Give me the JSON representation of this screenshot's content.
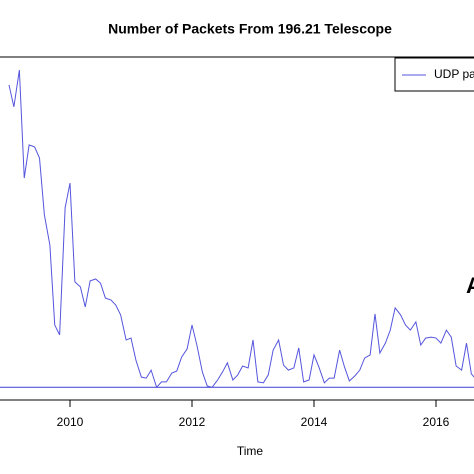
{
  "chart_data": {
    "type": "line",
    "title": "Number of Packets From 196.21 Telescope",
    "x_label": "Time",
    "annotation": "A",
    "hline": 0,
    "hline_color": "#5555dd",
    "x": [
      2009,
      2009.08,
      2009.17,
      2009.25,
      2009.33,
      2009.42,
      2009.5,
      2009.58,
      2009.67,
      2009.75,
      2009.83,
      2009.92,
      2010,
      2010.08,
      2010.17,
      2010.25,
      2010.33,
      2010.42,
      2010.5,
      2010.58,
      2010.67,
      2010.75,
      2010.83,
      2010.92,
      2011,
      2011.08,
      2011.17,
      2011.25,
      2011.33,
      2011.42,
      2011.5,
      2011.58,
      2011.67,
      2011.75,
      2011.83,
      2011.92,
      2012,
      2012.08,
      2012.17,
      2012.25,
      2012.33,
      2012.42,
      2012.5,
      2012.58,
      2012.67,
      2012.75,
      2012.83,
      2012.92,
      2013,
      2013.08,
      2013.17,
      2013.25,
      2013.33,
      2013.42,
      2013.5,
      2013.58,
      2013.67,
      2013.75,
      2013.83,
      2013.92,
      2014,
      2014.08,
      2014.17,
      2014.25,
      2014.33,
      2014.42,
      2014.5,
      2014.58,
      2014.67,
      2014.75,
      2014.83,
      2014.92,
      2015,
      2015.08,
      2015.17,
      2015.25,
      2015.33,
      2015.42,
      2015.5,
      2015.58,
      2015.67,
      2015.75,
      2015.83,
      2015.92,
      2016,
      2016.08,
      2016.17,
      2016.25,
      2016.33,
      2016.42,
      2016.5,
      2016.58,
      2016.67
    ],
    "series": [
      {
        "name": "UDP pa",
        "color": "#5555dd",
        "values": [
          95.2,
          88.3,
          99.9,
          65.9,
          76.3,
          75.7,
          72.2,
          54.3,
          44.8,
          19.6,
          16.5,
          56.5,
          64.3,
          33.2,
          31.6,
          25.3,
          33.5,
          34.1,
          32.8,
          28.1,
          27.5,
          25.9,
          22.8,
          14.9,
          15.5,
          8.6,
          3.2,
          2.9,
          5.4,
          0,
          1.7,
          1.7,
          4.5,
          5.1,
          9.5,
          12.1,
          19.6,
          13.3,
          4.8,
          0.4,
          0,
          2.3,
          4.8,
          7.7,
          2.3,
          3.9,
          6.7,
          6.1,
          14.9,
          1.7,
          1.4,
          3.9,
          11.7,
          14.9,
          7.0,
          5.4,
          6.1,
          12.4,
          1.7,
          2.3,
          10.2,
          6.4,
          1.4,
          2.9,
          2.9,
          11.7,
          6.4,
          2.0,
          3.6,
          5.4,
          9.2,
          10.2,
          23.1,
          10.8,
          13.9,
          18.0,
          25.0,
          22.8,
          19.6,
          18.0,
          20.6,
          13.3,
          15.5,
          15.8,
          15.5,
          13.9,
          18.0,
          15.8,
          6.7,
          5.4,
          13.9,
          4.2,
          2.3
        ]
      }
    ],
    "xlim": [
      2008.85,
      2016.62
    ],
    "xticks": [
      2010,
      2012,
      2014,
      2016
    ],
    "ylim": [
      -4,
      104
    ],
    "legend": "top-right"
  }
}
